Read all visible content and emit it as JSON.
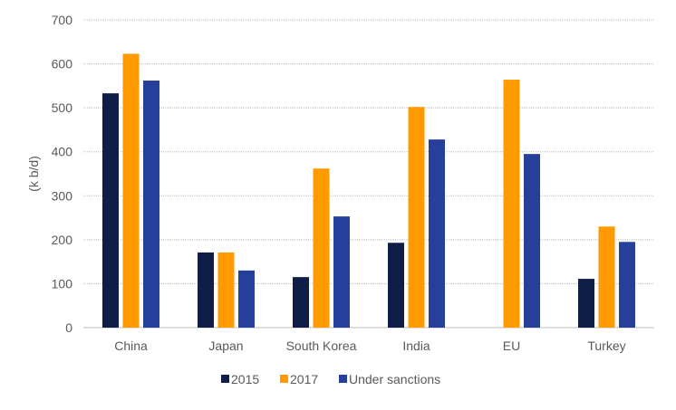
{
  "chart_data": {
    "type": "bar",
    "title": "",
    "xlabel": "",
    "ylabel": "(k b/d)",
    "ylim": [
      0,
      700
    ],
    "yticks": [
      0,
      100,
      200,
      300,
      400,
      500,
      600,
      700
    ],
    "grid": true,
    "legend_placement": "bottom",
    "categories": [
      "China",
      "Japan",
      "South Korea",
      "India",
      "EU",
      "Turkey"
    ],
    "series": [
      {
        "name": "2015",
        "color": "#0f1e47",
        "values": [
          533,
          171,
          115,
          193,
          0,
          111
        ]
      },
      {
        "name": "2017",
        "color": "#ff9a00",
        "values": [
          623,
          171,
          362,
          502,
          564,
          230
        ]
      },
      {
        "name": "Under sanctions",
        "color": "#253f9b",
        "values": [
          562,
          130,
          253,
          428,
          395,
          195
        ]
      }
    ]
  }
}
